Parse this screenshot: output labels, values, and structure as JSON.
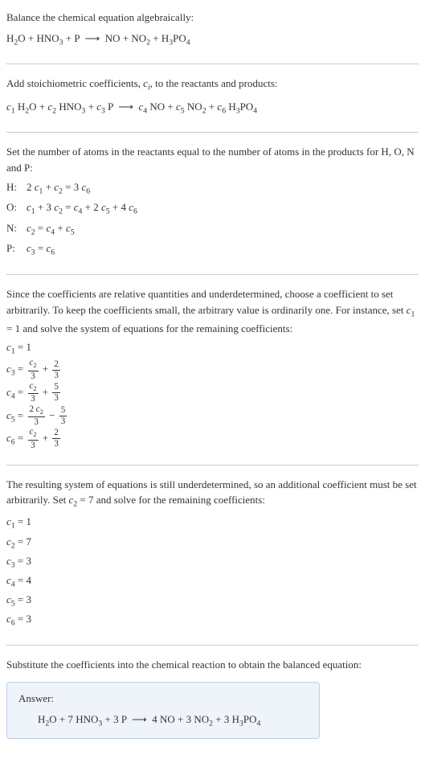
{
  "intro": {
    "line1": "Balance the chemical equation algebraically:",
    "eq_html": "H<sub>2</sub>O + HNO<sub>3</sub> + P &nbsp;⟶&nbsp; NO + NO<sub>2</sub> + H<sub>3</sub>PO<sub>4</sub>"
  },
  "stoich": {
    "text_html": "Add stoichiometric coefficients, <span class='ital'>c<sub>i</sub></span>, to the reactants and products:",
    "eq_html": "<span class='ital'>c</span><sub>1</sub> H<sub>2</sub>O + <span class='ital'>c</span><sub>2</sub> HNO<sub>3</sub> + <span class='ital'>c</span><sub>3</sub> P &nbsp;⟶&nbsp; <span class='ital'>c</span><sub>4</sub> NO + <span class='ital'>c</span><sub>5</sub> NO<sub>2</sub> + <span class='ital'>c</span><sub>6</sub> H<sub>3</sub>PO<sub>4</sub>"
  },
  "atoms": {
    "text": "Set the number of atoms in the reactants equal to the number of atoms in the products for H, O, N and P:",
    "rows": [
      {
        "el": "H:",
        "eq_html": "2 <span class='ital'>c</span><sub>1</sub> + <span class='ital'>c</span><sub>2</sub> = 3 <span class='ital'>c</span><sub>6</sub>"
      },
      {
        "el": "O:",
        "eq_html": "<span class='ital'>c</span><sub>1</sub> + 3 <span class='ital'>c</span><sub>2</sub> = <span class='ital'>c</span><sub>4</sub> + 2 <span class='ital'>c</span><sub>5</sub> + 4 <span class='ital'>c</span><sub>6</sub>"
      },
      {
        "el": "N:",
        "eq_html": "<span class='ital'>c</span><sub>2</sub> = <span class='ital'>c</span><sub>4</sub> + <span class='ital'>c</span><sub>5</sub>"
      },
      {
        "el": "P:",
        "eq_html": "<span class='ital'>c</span><sub>3</sub> = <span class='ital'>c</span><sub>6</sub>"
      }
    ]
  },
  "underdetermined1": {
    "text_html": "Since the coefficients are relative quantities and underdetermined, choose a coefficient to set arbitrarily. To keep the coefficients small, the arbitrary value is ordinarily one. For instance, set <span class='ital'>c</span><sub>1</sub> = 1 and solve the system of equations for the remaining coefficients:",
    "coefs": [
      {
        "html": "<span class='ital'>c</span><sub>1</sub> = 1"
      },
      {
        "html": "<span class='ital'>c</span><sub>3</sub> = <span class='frac'><span class='num'><span class='ital'>c</span><sub>2</sub></span><span class='den'>3</span></span> + <span class='frac'><span class='num'>2</span><span class='den'>3</span></span>"
      },
      {
        "html": "<span class='ital'>c</span><sub>4</sub> = <span class='frac'><span class='num'><span class='ital'>c</span><sub>2</sub></span><span class='den'>3</span></span> + <span class='frac'><span class='num'>5</span><span class='den'>3</span></span>"
      },
      {
        "html": "<span class='ital'>c</span><sub>5</sub> = <span class='frac'><span class='num'>2 <span class='ital'>c</span><sub>2</sub></span><span class='den'>3</span></span> − <span class='frac'><span class='num'>5</span><span class='den'>3</span></span>"
      },
      {
        "html": "<span class='ital'>c</span><sub>6</sub> = <span class='frac'><span class='num'><span class='ital'>c</span><sub>2</sub></span><span class='den'>3</span></span> + <span class='frac'><span class='num'>2</span><span class='den'>3</span></span>"
      }
    ]
  },
  "underdetermined2": {
    "text_html": "The resulting system of equations is still underdetermined, so an additional coefficient must be set arbitrarily. Set <span class='ital'>c</span><sub>2</sub> = 7 and solve for the remaining coefficients:",
    "coefs": [
      {
        "html": "<span class='ital'>c</span><sub>1</sub> = 1"
      },
      {
        "html": "<span class='ital'>c</span><sub>2</sub> = 7"
      },
      {
        "html": "<span class='ital'>c</span><sub>3</sub> = 3"
      },
      {
        "html": "<span class='ital'>c</span><sub>4</sub> = 4"
      },
      {
        "html": "<span class='ital'>c</span><sub>5</sub> = 3"
      },
      {
        "html": "<span class='ital'>c</span><sub>6</sub> = 3"
      }
    ]
  },
  "substitute": {
    "text": "Substitute the coefficients into the chemical reaction to obtain the balanced equation:"
  },
  "answer": {
    "label": "Answer:",
    "eq_html": "H<sub>2</sub>O + 7 HNO<sub>3</sub> + 3 P &nbsp;⟶&nbsp; 4 NO + 3 NO<sub>2</sub> + 3 H<sub>3</sub>PO<sub>4</sub>",
    "box_bg": "#eef4fa",
    "box_border": "#b8d0e8"
  },
  "colors": {
    "text": "#333333",
    "divider": "#cccccc",
    "background": "#ffffff"
  }
}
